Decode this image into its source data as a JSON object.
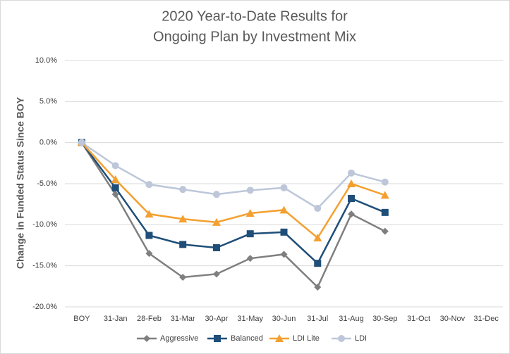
{
  "chart_data": {
    "type": "line",
    "title": [
      "2020 Year-to-Date Results for",
      "Ongoing Plan by Investment Mix"
    ],
    "y_label": "Change in Funded Status Since BOY",
    "categories": [
      "BOY",
      "31-Jan",
      "28-Feb",
      "31-Mar",
      "30-Apr",
      "31-May",
      "30-Jun",
      "31-Jul",
      "31-Aug",
      "30-Sep",
      "31-Oct",
      "30-Nov",
      "31-Dec"
    ],
    "series": [
      {
        "name": "Aggressive",
        "color": "#7f7f7f",
        "marker": "diamond",
        "values": [
          0,
          -6.3,
          -13.5,
          -16.4,
          -16.0,
          -14.1,
          -13.6,
          -17.6,
          -8.7,
          -10.8,
          null,
          null,
          null
        ]
      },
      {
        "name": "Balanced",
        "color": "#1f4e79",
        "marker": "square",
        "values": [
          0,
          -5.5,
          -11.3,
          -12.4,
          -12.8,
          -11.1,
          -10.9,
          -14.7,
          -6.8,
          -8.5,
          null,
          null,
          null
        ]
      },
      {
        "name": "LDI Lite",
        "color": "#f4a030",
        "marker": "triangle",
        "values": [
          0,
          -4.5,
          -8.7,
          -9.3,
          -9.7,
          -8.6,
          -8.2,
          -11.6,
          -5.0,
          -6.4,
          null,
          null,
          null
        ]
      },
      {
        "name": "LDI",
        "color": "#bdc7d9",
        "marker": "circle",
        "values": [
          0,
          -2.8,
          -5.1,
          -5.7,
          -6.3,
          -5.8,
          -5.5,
          -8.0,
          -3.7,
          -4.8,
          null,
          null,
          null
        ]
      }
    ],
    "ylim": [
      -20,
      10
    ],
    "yticks": [
      {
        "value": -20,
        "label": "-20.0%"
      },
      {
        "value": -15,
        "label": "-15.0%"
      },
      {
        "value": -10,
        "label": "-10.0%"
      },
      {
        "value": -5,
        "label": "-5.0%"
      },
      {
        "value": 0,
        "label": "0.0%"
      },
      {
        "value": 5,
        "label": "5.0%"
      },
      {
        "value": 10,
        "label": "10.0%"
      }
    ],
    "grid": true,
    "legend": "bottom"
  }
}
